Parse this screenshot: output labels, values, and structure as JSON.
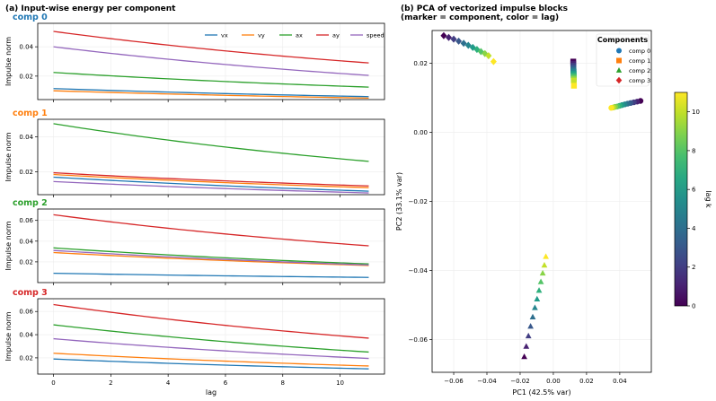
{
  "figure": {
    "left_title": "(a) Input-wise energy per component",
    "right_title_line1": "(b) PCA of vectorized impulse blocks",
    "right_title_line2": "(marker = component, color = lag)"
  },
  "colors": {
    "vx": "#1f77b4",
    "vy": "#ff7f0e",
    "ax": "#2ca02c",
    "ay": "#d62728",
    "speed": "#9467bd",
    "comp0": "#1f77b4",
    "comp1": "#ff7f0e",
    "comp2": "#2ca02c",
    "comp3": "#d62728"
  },
  "chart_data": [
    {
      "type": "line",
      "title": "comp 0",
      "title_color": "#1f77b4",
      "xlabel": "",
      "ylabel": "Impulse norm",
      "xlim": [
        -0.55,
        11.55
      ],
      "ylim": [
        0.004,
        0.056
      ],
      "yticks": [
        0.02,
        0.04
      ],
      "ytick_labels": [
        "0.02",
        "0.04"
      ],
      "xticks": [
        0,
        2,
        4,
        6,
        8,
        10
      ],
      "xtick_labels": [],
      "x": [
        0,
        11
      ],
      "legend": {
        "location": "top-right",
        "entries": [
          "vx",
          "vy",
          "ax",
          "ay",
          "speed"
        ]
      },
      "series": [
        {
          "name": "vx",
          "start": 0.0115,
          "end": 0.006
        },
        {
          "name": "vy",
          "start": 0.01,
          "end": 0.005
        },
        {
          "name": "ax",
          "start": 0.0225,
          "end": 0.0125
        },
        {
          "name": "ay",
          "start": 0.0505,
          "end": 0.029
        },
        {
          "name": "speed",
          "start": 0.04,
          "end": 0.0205
        }
      ]
    },
    {
      "type": "line",
      "title": "comp 1",
      "title_color": "#ff7f0e",
      "xlabel": "",
      "ylabel": "Impulse norm",
      "xlim": [
        -0.55,
        11.55
      ],
      "ylim": [
        0.007,
        0.05
      ],
      "yticks": [
        0.02,
        0.04
      ],
      "ytick_labels": [
        "0.02",
        "0.04"
      ],
      "xticks": [
        0,
        2,
        4,
        6,
        8,
        10
      ],
      "xtick_labels": [],
      "x": [
        0,
        11
      ],
      "series": [
        {
          "name": "vx",
          "start": 0.017,
          "end": 0.009
        },
        {
          "name": "vy",
          "start": 0.0185,
          "end": 0.011
        },
        {
          "name": "ax",
          "start": 0.0475,
          "end": 0.026
        },
        {
          "name": "ay",
          "start": 0.0195,
          "end": 0.012
        },
        {
          "name": "speed",
          "start": 0.0145,
          "end": 0.008
        }
      ]
    },
    {
      "type": "line",
      "title": "comp 2",
      "title_color": "#2ca02c",
      "xlabel": "",
      "ylabel": "Impulse norm",
      "xlim": [
        -0.55,
        11.55
      ],
      "ylim": [
        0.0,
        0.071
      ],
      "yticks": [
        0.02,
        0.04,
        0.06
      ],
      "ytick_labels": [
        "0.02",
        "0.04",
        "0.06"
      ],
      "xticks": [
        0,
        2,
        4,
        6,
        8,
        10
      ],
      "xtick_labels": [],
      "x": [
        0,
        11
      ],
      "series": [
        {
          "name": "vx",
          "start": 0.009,
          "end": 0.005
        },
        {
          "name": "vy",
          "start": 0.029,
          "end": 0.0165
        },
        {
          "name": "ax",
          "start": 0.0335,
          "end": 0.018
        },
        {
          "name": "ay",
          "start": 0.0655,
          "end": 0.0355
        },
        {
          "name": "speed",
          "start": 0.031,
          "end": 0.017
        }
      ]
    },
    {
      "type": "line",
      "title": "comp 3",
      "title_color": "#d62728",
      "xlabel": "lag",
      "ylabel": "Impulse norm",
      "xlim": [
        -0.55,
        11.55
      ],
      "ylim": [
        0.006,
        0.071
      ],
      "yticks": [
        0.02,
        0.04,
        0.06
      ],
      "ytick_labels": [
        "0.02",
        "0.04",
        "0.06"
      ],
      "xticks": [
        0,
        2,
        4,
        6,
        8,
        10
      ],
      "xtick_labels": [
        "0",
        "2",
        "4",
        "6",
        "8",
        "10"
      ],
      "x": [
        0,
        11
      ],
      "series": [
        {
          "name": "vx",
          "start": 0.019,
          "end": 0.0105
        },
        {
          "name": "vy",
          "start": 0.024,
          "end": 0.013
        },
        {
          "name": "ax",
          "start": 0.0485,
          "end": 0.025
        },
        {
          "name": "ay",
          "start": 0.066,
          "end": 0.037
        },
        {
          "name": "speed",
          "start": 0.0365,
          "end": 0.0195
        }
      ]
    },
    {
      "type": "scatter",
      "title": "(b) PCA of vectorized impulse blocks",
      "xlabel": "PC1 (42.5% var)",
      "ylabel": "PC2 (33.1% var)",
      "xlim": [
        -0.073,
        0.059
      ],
      "ylim": [
        -0.0695,
        0.0295
      ],
      "xticks": [
        -0.06,
        -0.04,
        -0.02,
        0.0,
        0.02,
        0.04
      ],
      "xtick_labels": [
        "−0.06",
        "−0.04",
        "−0.02",
        "0.00",
        "0.02",
        "0.04"
      ],
      "yticks": [
        -0.06,
        -0.04,
        -0.02,
        0.0,
        0.02
      ],
      "ytick_labels": [
        "−0.06",
        "−0.04",
        "−0.02",
        "0.00",
        "0.02"
      ],
      "grid": true,
      "legend": {
        "location": "top-right",
        "title": "Components",
        "entries": [
          {
            "label": "comp 0",
            "marker": "circle",
            "color": "#1f77b4"
          },
          {
            "label": "comp 1",
            "marker": "square",
            "color": "#ff7f0e"
          },
          {
            "label": "comp 2",
            "marker": "triangle",
            "color": "#2ca02c"
          },
          {
            "label": "comp 3",
            "marker": "diamond",
            "color": "#d62728"
          }
        ]
      },
      "lags": [
        0,
        1,
        2,
        3,
        4,
        5,
        6,
        7,
        8,
        9,
        10,
        11
      ],
      "series": [
        {
          "name": "comp 0",
          "marker": "circle",
          "x": [
            0.0525,
            0.0505,
            0.0485,
            0.0465,
            0.0447,
            0.043,
            0.0414,
            0.0399,
            0.0385,
            0.0372,
            0.036,
            0.0349
          ],
          "y": [
            0.0091,
            0.0089,
            0.0087,
            0.0085,
            0.0083,
            0.0081,
            0.0079,
            0.0077,
            0.0075,
            0.0074,
            0.0072,
            0.0071
          ]
        },
        {
          "name": "comp 1",
          "marker": "square",
          "x": [
            0.012,
            0.012,
            0.0121,
            0.0121,
            0.0121,
            0.0122,
            0.0122,
            0.0122,
            0.0123,
            0.0123,
            0.0123,
            0.0124
          ],
          "y": [
            0.0205,
            0.0199,
            0.0193,
            0.0187,
            0.0181,
            0.0176,
            0.017,
            0.0165,
            0.016,
            0.0155,
            0.015,
            0.0135
          ]
        },
        {
          "name": "comp 2",
          "marker": "triangle",
          "x": [
            -0.0175,
            -0.0163,
            -0.015,
            -0.0137,
            -0.0124,
            -0.0111,
            -0.0098,
            -0.0086,
            -0.0075,
            -0.0064,
            -0.0054,
            -0.0045
          ],
          "y": [
            -0.065,
            -0.062,
            -0.059,
            -0.0562,
            -0.0535,
            -0.0508,
            -0.0483,
            -0.0458,
            -0.0433,
            -0.0408,
            -0.0385,
            -0.036
          ]
        },
        {
          "name": "comp 3",
          "marker": "diamond",
          "x": [
            -0.066,
            -0.063,
            -0.06,
            -0.057,
            -0.054,
            -0.0512,
            -0.0485,
            -0.046,
            -0.0436,
            -0.0412,
            -0.039,
            -0.036
          ],
          "y": [
            0.028,
            0.0275,
            0.027,
            0.0264,
            0.0258,
            0.0252,
            0.0246,
            0.024,
            0.0234,
            0.0228,
            0.0222,
            0.0205
          ]
        }
      ],
      "colorbar": {
        "label": "lag k",
        "colormap": "viridis",
        "range": [
          0,
          11
        ],
        "ticks": [
          0,
          2,
          4,
          6,
          8,
          10
        ],
        "tick_labels": [
          "0",
          "2",
          "4",
          "6",
          "8",
          "10"
        ]
      }
    }
  ]
}
